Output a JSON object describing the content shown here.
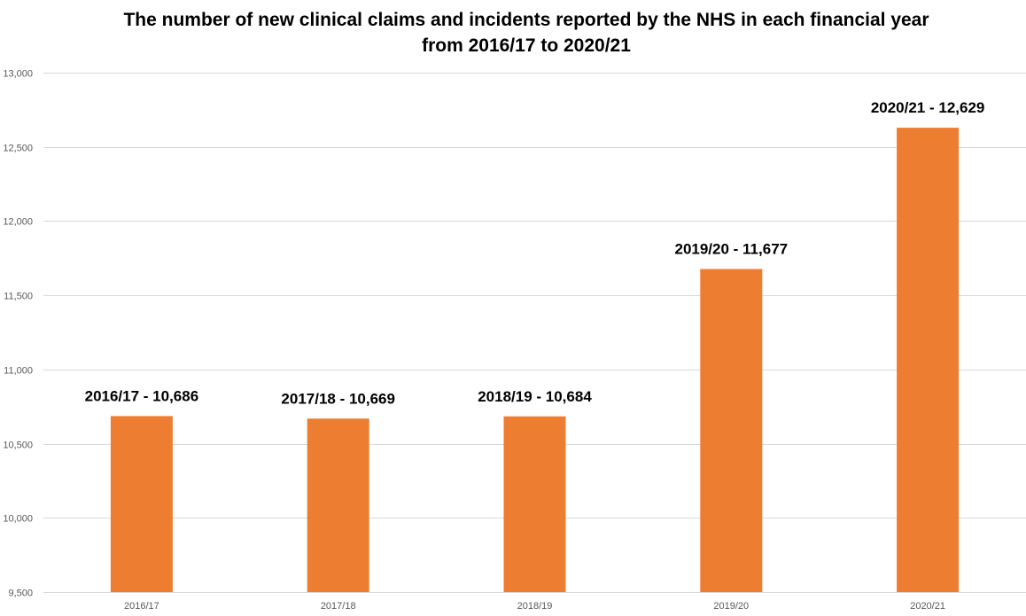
{
  "chart_data": {
    "type": "bar",
    "title_line1": "The number of new clinical claims and incidents reported by the NHS in each financial year",
    "title_line2": "from 2016/17 to 2020/21",
    "categories": [
      "2016/17",
      "2017/18",
      "2018/19",
      "2019/20",
      "2020/21"
    ],
    "values": [
      10686,
      10669,
      10684,
      11677,
      12629
    ],
    "data_labels": [
      "2016/17 - 10,686",
      "2017/18 - 10,669",
      "2018/19 - 10,684",
      "2019/20 - 11,677",
      "2020/21 - 12,629"
    ],
    "y_ticks": [
      9500,
      10000,
      10500,
      11000,
      11500,
      12000,
      12500,
      13000
    ],
    "y_tick_labels": [
      "9,500",
      "10,000",
      "10,500",
      "11,000",
      "11,500",
      "12,000",
      "12,500",
      "13,000"
    ],
    "ylim": [
      9500,
      13000
    ],
    "xlabel": "",
    "ylabel": "",
    "grid": true,
    "legend": "none",
    "bar_color": "#ED7D31",
    "grid_color": "#D9D9D9"
  }
}
